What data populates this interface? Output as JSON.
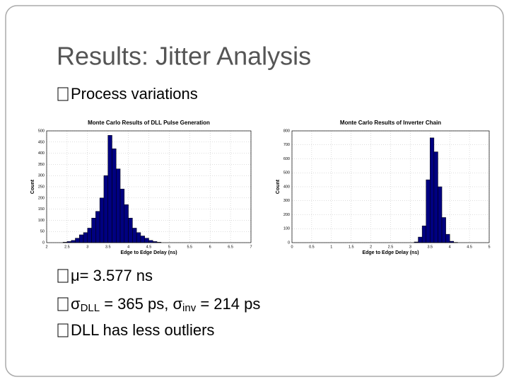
{
  "slide": {
    "title": "Results: Jitter Analysis",
    "bullets": [
      "Process variations",
      "μ= 3.577 ns",
      [
        "σ",
        "DLL",
        " = 365 ps, σ",
        "inv",
        " = 214 ps"
      ],
      "DLL has less outliers"
    ]
  },
  "chart_data": [
    {
      "type": "histogram",
      "title": "Monte Carlo Results of DLL Pulse Generation",
      "x_label": "Edge to Edge Delay (ns)",
      "y_label": "Count",
      "bins": [
        2.4,
        2.5,
        2.6,
        2.7,
        2.8,
        2.9,
        3.0,
        3.1,
        3.2,
        3.3,
        3.4,
        3.5,
        3.6,
        3.7,
        3.8,
        3.9,
        4.0,
        4.1,
        4.2,
        4.3,
        4.4,
        4.5,
        4.6,
        4.7,
        4.8
      ],
      "values": [
        2,
        5,
        10,
        20,
        35,
        45,
        65,
        110,
        140,
        200,
        300,
        480,
        420,
        330,
        240,
        170,
        110,
        65,
        45,
        30,
        20,
        10,
        5,
        2
      ],
      "color": "#000080",
      "grid": true,
      "xlim": [
        2,
        7
      ],
      "xticks": [
        2,
        2.5,
        3,
        3.5,
        4,
        4.5,
        5,
        5.5,
        6,
        6.5,
        7
      ],
      "ylim": [
        0,
        500
      ],
      "yticks": [
        0,
        50,
        100,
        150,
        200,
        250,
        300,
        350,
        400,
        450,
        500
      ]
    },
    {
      "type": "histogram",
      "title": "Monte Carlo Results of Inverter Chain",
      "x_label": "Edge to Edge Delay (ns)",
      "y_label": "Count",
      "bins": [
        3.1,
        3.2,
        3.3,
        3.4,
        3.5,
        3.6,
        3.7,
        3.8,
        3.9,
        4.0,
        4.1,
        4.2
      ],
      "values": [
        5,
        40,
        120,
        450,
        750,
        650,
        400,
        180,
        60,
        10,
        2
      ],
      "color": "#000080",
      "grid": true,
      "xlim": [
        0,
        5
      ],
      "xticks": [
        0,
        0.5,
        1,
        1.5,
        2,
        2.5,
        3,
        3.5,
        4,
        4.5,
        5
      ],
      "ylim": [
        0,
        800
      ],
      "yticks": [
        0,
        100,
        200,
        300,
        400,
        500,
        600,
        700,
        800
      ]
    }
  ]
}
